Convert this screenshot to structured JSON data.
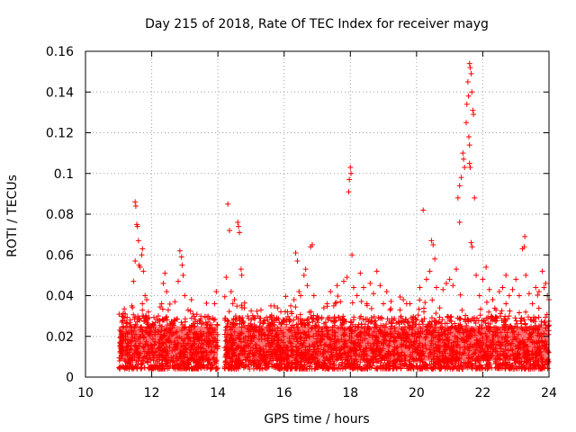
{
  "chart_data": {
    "type": "scatter",
    "title": "Day 215 of 2018, Rate Of TEC Index for receiver mayg",
    "xlabel": "GPS time / hours",
    "ylabel": "ROTI / TECUs",
    "xlim": [
      10,
      24
    ],
    "ylim": [
      0,
      0.16
    ],
    "x_ticks": [
      10,
      12,
      14,
      16,
      18,
      20,
      22,
      24
    ],
    "x_tick_labels": [
      "10",
      "12",
      "14",
      "16",
      "18",
      "20",
      "22",
      "24"
    ],
    "y_ticks": [
      0,
      0.02,
      0.04,
      0.06,
      0.08,
      0.1,
      0.12,
      0.14,
      0.16
    ],
    "y_tick_labels": [
      "0",
      "0.02",
      "0.04",
      "0.06",
      "0.08",
      "0.1",
      "0.12",
      "0.14",
      "0.16"
    ],
    "grid": true,
    "marker": "plus",
    "color": "#ff0000",
    "series": [
      {
        "name": "ROTI",
        "points": [
          [
            11.05,
            0.012
          ],
          [
            11.1,
            0.018
          ],
          [
            11.15,
            0.025
          ],
          [
            11.2,
            0.031
          ],
          [
            11.25,
            0.015
          ],
          [
            11.3,
            0.022
          ],
          [
            11.35,
            0.028
          ],
          [
            11.4,
            0.035
          ],
          [
            11.45,
            0.047
          ],
          [
            11.5,
            0.057
          ],
          [
            11.5,
            0.086
          ],
          [
            11.52,
            0.084
          ],
          [
            11.55,
            0.075
          ],
          [
            11.57,
            0.074
          ],
          [
            11.6,
            0.067
          ],
          [
            11.62,
            0.055
          ],
          [
            11.65,
            0.054
          ],
          [
            11.7,
            0.06
          ],
          [
            11.72,
            0.063
          ],
          [
            11.75,
            0.052
          ],
          [
            11.8,
            0.04
          ],
          [
            11.85,
            0.038
          ],
          [
            11.9,
            0.032
          ],
          [
            12.0,
            0.025
          ],
          [
            12.1,
            0.022
          ],
          [
            12.2,
            0.03
          ],
          [
            12.3,
            0.036
          ],
          [
            12.35,
            0.046
          ],
          [
            12.4,
            0.051
          ],
          [
            12.45,
            0.042
          ],
          [
            12.5,
            0.033
          ],
          [
            12.6,
            0.027
          ],
          [
            12.7,
            0.037
          ],
          [
            12.8,
            0.047
          ],
          [
            12.85,
            0.062
          ],
          [
            12.9,
            0.059
          ],
          [
            12.92,
            0.055
          ],
          [
            12.95,
            0.05
          ],
          [
            13.0,
            0.04
          ],
          [
            13.1,
            0.033
          ],
          [
            13.2,
            0.038
          ],
          [
            13.25,
            0.031
          ],
          [
            13.3,
            0.025
          ],
          [
            13.4,
            0.02
          ],
          [
            13.5,
            0.026
          ],
          [
            13.6,
            0.018
          ],
          [
            13.7,
            0.027
          ],
          [
            13.8,
            0.022
          ],
          [
            13.9,
            0.036
          ],
          [
            13.95,
            0.042
          ],
          [
            14.0,
            0.015
          ],
          [
            14.25,
            0.049
          ],
          [
            14.3,
            0.085
          ],
          [
            14.35,
            0.072
          ],
          [
            14.4,
            0.042
          ],
          [
            14.5,
            0.038
          ],
          [
            14.6,
            0.076
          ],
          [
            14.62,
            0.074
          ],
          [
            14.65,
            0.071
          ],
          [
            14.7,
            0.053
          ],
          [
            14.72,
            0.05
          ],
          [
            14.8,
            0.034
          ],
          [
            14.9,
            0.03
          ],
          [
            15.0,
            0.025
          ],
          [
            15.1,
            0.024
          ],
          [
            15.2,
            0.03
          ],
          [
            15.3,
            0.033
          ],
          [
            15.4,
            0.021
          ],
          [
            15.5,
            0.028
          ],
          [
            15.6,
            0.035
          ],
          [
            15.7,
            0.029
          ],
          [
            15.8,
            0.034
          ],
          [
            15.9,
            0.026
          ],
          [
            16.0,
            0.027
          ],
          [
            16.1,
            0.032
          ],
          [
            16.2,
            0.035
          ],
          [
            16.3,
            0.038
          ],
          [
            16.35,
            0.061
          ],
          [
            16.4,
            0.057
          ],
          [
            16.45,
            0.042
          ],
          [
            16.5,
            0.04
          ],
          [
            16.6,
            0.05
          ],
          [
            16.65,
            0.053
          ],
          [
            16.7,
            0.045
          ],
          [
            16.8,
            0.064
          ],
          [
            16.85,
            0.065
          ],
          [
            16.9,
            0.04
          ],
          [
            17.0,
            0.03
          ],
          [
            17.2,
            0.034
          ],
          [
            17.3,
            0.036
          ],
          [
            17.4,
            0.042
          ],
          [
            17.5,
            0.035
          ],
          [
            17.6,
            0.045
          ],
          [
            17.7,
            0.037
          ],
          [
            17.8,
            0.047
          ],
          [
            17.9,
            0.049
          ],
          [
            17.95,
            0.091
          ],
          [
            17.97,
            0.097
          ],
          [
            18.0,
            0.103
          ],
          [
            18.02,
            0.1
          ],
          [
            18.05,
            0.06
          ],
          [
            18.1,
            0.044
          ],
          [
            18.2,
            0.04
          ],
          [
            18.3,
            0.051
          ],
          [
            18.4,
            0.044
          ],
          [
            18.5,
            0.036
          ],
          [
            18.6,
            0.046
          ],
          [
            18.7,
            0.041
          ],
          [
            18.8,
            0.052
          ],
          [
            18.9,
            0.045
          ],
          [
            19.0,
            0.036
          ],
          [
            19.1,
            0.042
          ],
          [
            19.2,
            0.033
          ],
          [
            19.3,
            0.028
          ],
          [
            19.5,
            0.033
          ],
          [
            19.6,
            0.038
          ],
          [
            19.7,
            0.036
          ],
          [
            19.8,
            0.036
          ],
          [
            20.0,
            0.028
          ],
          [
            20.1,
            0.044
          ],
          [
            20.2,
            0.082
          ],
          [
            20.3,
            0.048
          ],
          [
            20.4,
            0.052
          ],
          [
            20.45,
            0.067
          ],
          [
            20.5,
            0.065
          ],
          [
            20.55,
            0.058
          ],
          [
            20.6,
            0.044
          ],
          [
            20.7,
            0.034
          ],
          [
            20.8,
            0.043
          ],
          [
            20.9,
            0.046
          ],
          [
            21.0,
            0.048
          ],
          [
            21.1,
            0.045
          ],
          [
            21.2,
            0.053
          ],
          [
            21.3,
            0.076
          ],
          [
            21.25,
            0.088
          ],
          [
            21.3,
            0.094
          ],
          [
            21.35,
            0.098
          ],
          [
            21.4,
            0.11
          ],
          [
            21.42,
            0.107
          ],
          [
            21.45,
            0.103
          ],
          [
            21.5,
            0.125
          ],
          [
            21.52,
            0.134
          ],
          [
            21.55,
            0.145
          ],
          [
            21.57,
            0.138
          ],
          [
            21.6,
            0.154
          ],
          [
            21.62,
            0.152
          ],
          [
            21.65,
            0.149
          ],
          [
            21.67,
            0.14
          ],
          [
            21.7,
            0.131
          ],
          [
            21.72,
            0.129
          ],
          [
            21.58,
            0.118
          ],
          [
            21.6,
            0.114
          ],
          [
            21.6,
            0.105
          ],
          [
            21.62,
            0.103
          ],
          [
            21.65,
            0.066
          ],
          [
            21.68,
            0.064
          ],
          [
            21.75,
            0.088
          ],
          [
            21.8,
            0.05
          ],
          [
            21.9,
            0.04
          ],
          [
            22.0,
            0.048
          ],
          [
            22.1,
            0.054
          ],
          [
            22.2,
            0.043
          ],
          [
            22.3,
            0.038
          ],
          [
            22.4,
            0.033
          ],
          [
            22.5,
            0.042
          ],
          [
            22.6,
            0.044
          ],
          [
            22.7,
            0.05
          ],
          [
            22.8,
            0.04
          ],
          [
            22.9,
            0.043
          ],
          [
            23.0,
            0.048
          ],
          [
            23.1,
            0.04
          ],
          [
            23.2,
            0.063
          ],
          [
            23.25,
            0.064
          ],
          [
            23.27,
            0.069
          ],
          [
            23.3,
            0.05
          ],
          [
            23.4,
            0.041
          ],
          [
            23.5,
            0.036
          ],
          [
            23.6,
            0.044
          ],
          [
            23.7,
            0.042
          ],
          [
            23.8,
            0.052
          ],
          [
            23.85,
            0.044
          ],
          [
            23.9,
            0.046
          ],
          [
            23.95,
            0.04
          ],
          [
            24.0,
            0.038
          ]
        ]
      }
    ]
  }
}
